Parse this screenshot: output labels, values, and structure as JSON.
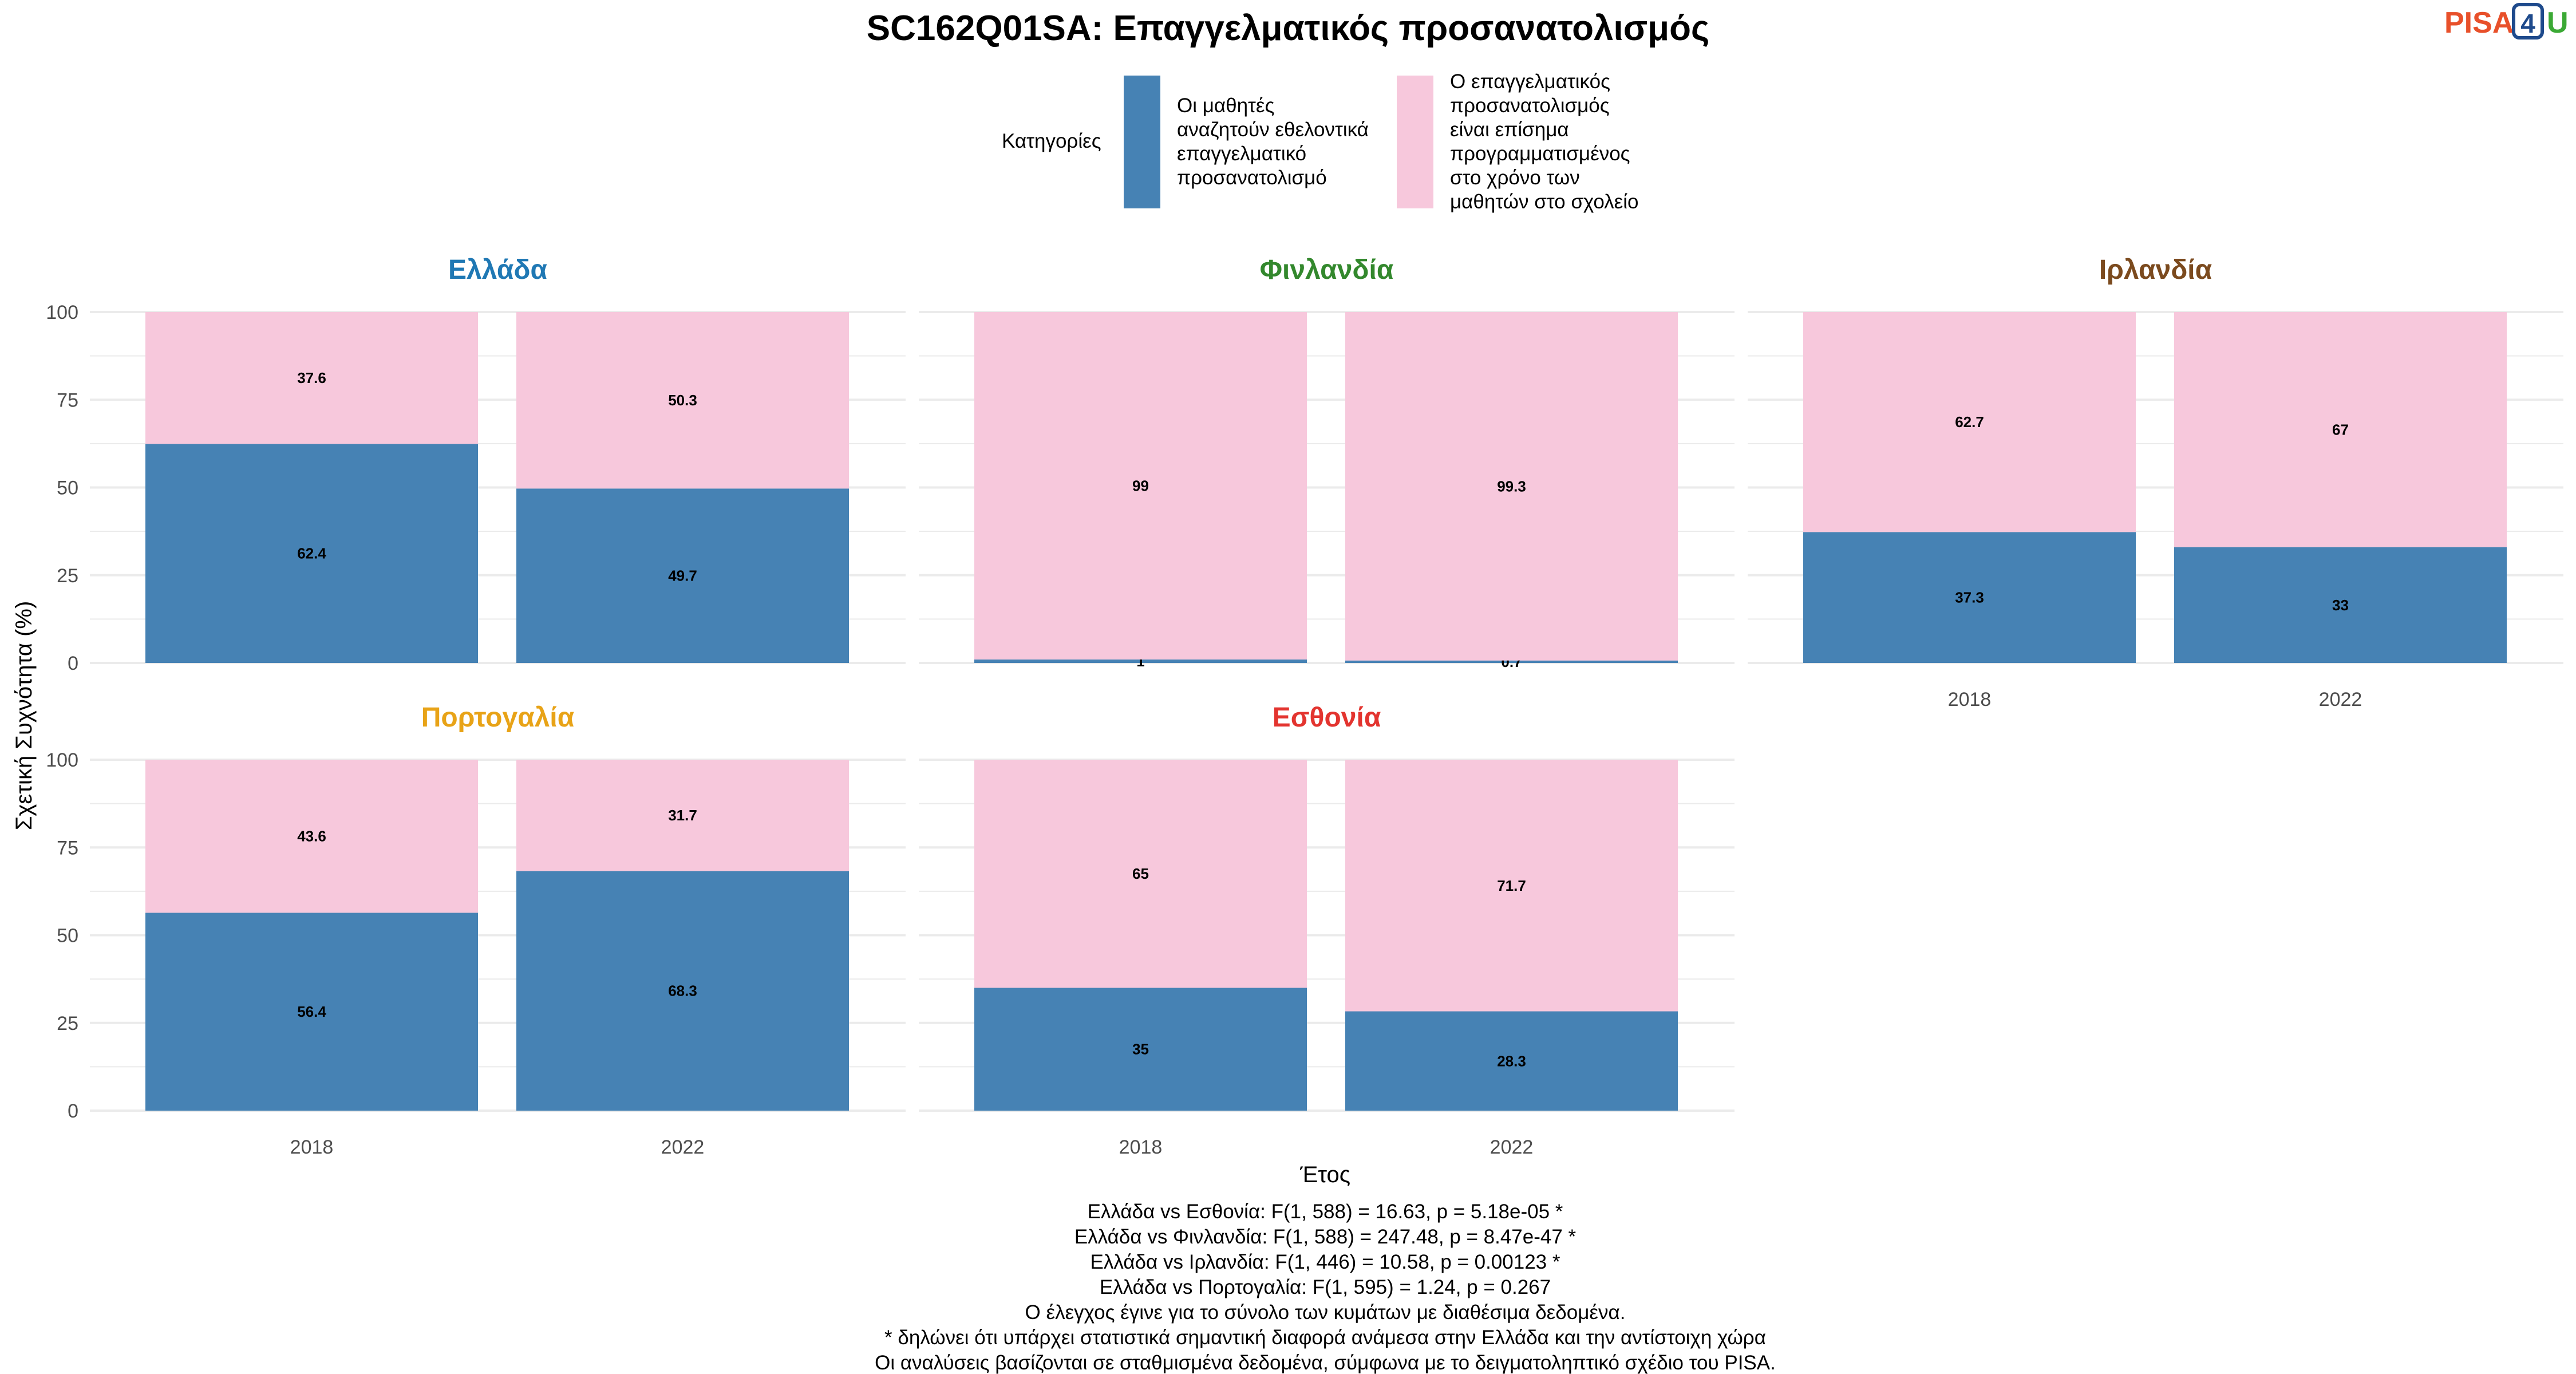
{
  "title": "SC162Q01SA: Επαγγελματικός προσανατολισμός",
  "logo": {
    "text_main": "PISA",
    "text_box": "4",
    "text_end": "U"
  },
  "legend": {
    "title": "Κατηγορίες",
    "entries": [
      {
        "lines": [
          "Οι μαθητές",
          "αναζητούν εθελοντικά",
          "επαγγελματικό",
          "προσανατολισμό"
        ],
        "color": "#4682B4"
      },
      {
        "lines": [
          "Ο επαγγελματικός",
          "προσανατολισμός",
          "είναι επίσημα",
          "προγραμματισμένος",
          "στο χρόνο των",
          "μαθητών στο σχολείο"
        ],
        "color": "#F7C8DC"
      }
    ]
  },
  "colors": {
    "series1": "#4682B4",
    "series2": "#F7C8DC",
    "grid": "#EBEBEB",
    "axis_text": "#4D4D4D"
  },
  "chart_data": {
    "type": "bar",
    "stacked": true,
    "categories": [
      "2018",
      "2022"
    ],
    "xlabel": "Έτος",
    "ylabel": "Σχετική Συχνότητα (%)",
    "ylim": [
      0,
      100
    ],
    "yticks": [
      0,
      25,
      50,
      75,
      100
    ],
    "grid": true,
    "legend_position": "top",
    "facets": [
      {
        "name": "Ελλάδα",
        "color": "#1F78B4",
        "series": [
          {
            "values": [
              62.4,
              49.7
            ],
            "labels": [
              "62.4",
              "49.7"
            ]
          },
          {
            "values": [
              37.6,
              50.3
            ],
            "labels": [
              "37.6",
              "50.3"
            ]
          }
        ]
      },
      {
        "name": "Φινλανδία",
        "color": "#33882D",
        "series": [
          {
            "values": [
              1,
              0.7
            ],
            "labels": [
              "1",
              "0.7"
            ]
          },
          {
            "values": [
              99,
              99.3
            ],
            "labels": [
              "99",
              "99.3"
            ]
          }
        ]
      },
      {
        "name": "Ιρλανδία",
        "color": "#7B4A1E",
        "series": [
          {
            "values": [
              37.3,
              33
            ],
            "labels": [
              "37.3",
              "33"
            ]
          },
          {
            "values": [
              62.7,
              67
            ],
            "labels": [
              "62.7",
              "67"
            ]
          }
        ]
      },
      {
        "name": "Πορτογαλία",
        "color": "#E8A317",
        "series": [
          {
            "values": [
              56.4,
              68.3
            ],
            "labels": [
              "56.4",
              "68.3"
            ]
          },
          {
            "values": [
              43.6,
              31.7
            ],
            "labels": [
              "43.6",
              "31.7"
            ]
          }
        ]
      },
      {
        "name": "Εσθονία",
        "color": "#E3342F",
        "series": [
          {
            "values": [
              35,
              28.3
            ],
            "labels": [
              "35",
              "28.3"
            ]
          },
          {
            "values": [
              65,
              71.7
            ],
            "labels": [
              "65",
              "71.7"
            ]
          }
        ]
      }
    ]
  },
  "footnotes": [
    "Ελλάδα vs Εσθονία: F(1, 588) = 16.63, p = 5.18e-05 *",
    "Ελλάδα vs Φινλανδία: F(1, 588) = 247.48, p = 8.47e-47 *",
    "Ελλάδα vs Ιρλανδία: F(1, 446) = 10.58, p = 0.00123 *",
    "Ελλάδα vs Πορτογαλία: F(1, 595) = 1.24, p = 0.267",
    "Ο έλεγχος έγινε για το σύνολο των κυμάτων με διαθέσιμα δεδομένα.",
    "* δηλώνει ότι υπάρχει στατιστικά σημαντική διαφορά ανάμεσα στην Ελλάδα και την αντίστοιχη χώρα",
    "Οι αναλύσεις βασίζονται σε σταθμισμένα δεδομένα, σύμφωνα με το δειγματοληπτικό σχέδιο του PISA."
  ]
}
